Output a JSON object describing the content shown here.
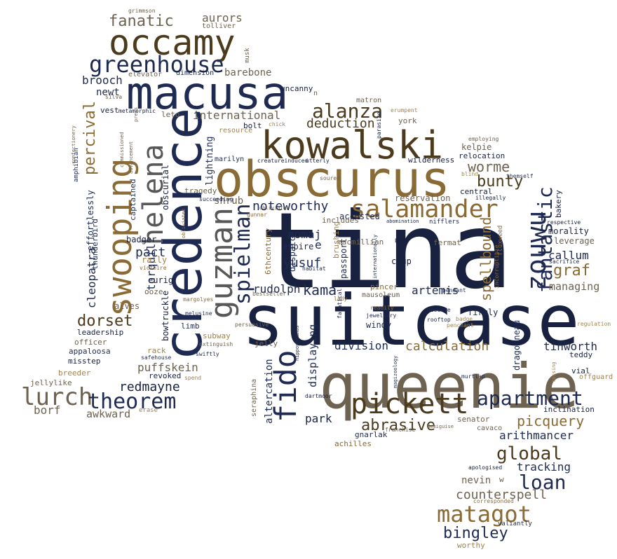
{
  "palette": {
    "navy": "#1e2a52",
    "dark_navy": "#18213f",
    "gold": "#8a6a35",
    "tan": "#a08350",
    "dark_brown": "#4b3a1c",
    "gray_brown": "#6e6250",
    "gray": "#585858"
  },
  "words": [
    {
      "text": "tina",
      "color": "dark_navy"
    },
    {
      "text": "suitcase",
      "color": "dark_navy"
    },
    {
      "text": "queenie",
      "color": "gray_brown"
    },
    {
      "text": "credence",
      "color": "navy"
    },
    {
      "text": "obscurus",
      "color": "gold"
    },
    {
      "text": "macusa",
      "color": "navy"
    },
    {
      "text": "kowalski",
      "color": "dark_brown"
    },
    {
      "text": "occamy",
      "color": "dark_brown"
    },
    {
      "text": "swooping",
      "color": "gold"
    },
    {
      "text": "guzman",
      "color": "gray"
    },
    {
      "text": "fido",
      "color": "navy"
    },
    {
      "text": "helena",
      "color": "gray"
    },
    {
      "text": "zouwu",
      "color": "navy"
    },
    {
      "text": "pickett",
      "color": "dark_brown"
    },
    {
      "text": "salamander",
      "color": "gold"
    },
    {
      "text": "fantastic",
      "color": "navy"
    },
    {
      "text": "greenhouse",
      "color": "navy"
    },
    {
      "text": "spielman",
      "color": "navy"
    },
    {
      "text": "lurch",
      "color": "gray_brown"
    },
    {
      "text": "theorem",
      "color": "navy"
    },
    {
      "text": "apartment",
      "color": "navy"
    },
    {
      "text": "matagot",
      "color": "gold"
    },
    {
      "text": "alanza",
      "color": "dark_brown"
    },
    {
      "text": "loan",
      "color": "navy"
    },
    {
      "text": "global",
      "color": "dark_brown"
    },
    {
      "text": "abrasive",
      "color": "dark_brown"
    },
    {
      "text": "fanatic",
      "color": "gray_brown"
    },
    {
      "text": "percival",
      "color": "gold"
    },
    {
      "text": "spellbound",
      "color": "gold"
    },
    {
      "text": "bunty",
      "color": "dark_brown"
    },
    {
      "text": "worme",
      "color": "gray_brown"
    },
    {
      "text": "picquery",
      "color": "gold"
    },
    {
      "text": "bingley",
      "color": "navy"
    },
    {
      "text": "dorset",
      "color": "dark_brown"
    },
    {
      "text": "graf",
      "color": "gold"
    },
    {
      "text": "noteworthy",
      "color": "navy"
    },
    {
      "text": "deduction",
      "color": "dark_brown"
    },
    {
      "text": "calculation",
      "color": "gold"
    },
    {
      "text": "international",
      "color": "gray_brown"
    },
    {
      "text": "kama",
      "color": "navy"
    },
    {
      "text": "redmayne",
      "color": "dark_navy"
    },
    {
      "text": "counterspell",
      "color": "gray_brown"
    },
    {
      "text": "tinworth",
      "color": "navy"
    },
    {
      "text": "division",
      "color": "navy"
    },
    {
      "text": "callum",
      "color": "navy"
    },
    {
      "text": "arithmancer",
      "color": "navy"
    },
    {
      "text": "managing",
      "color": "gray_brown"
    },
    {
      "text": "tracking",
      "color": "navy"
    },
    {
      "text": "yusuf",
      "color": "navy"
    },
    {
      "text": "rudolph",
      "color": "navy"
    },
    {
      "text": "artemis",
      "color": "navy"
    },
    {
      "text": "torquil",
      "color": "navy"
    },
    {
      "text": "pact",
      "color": "navy"
    },
    {
      "text": "nomaj",
      "color": "navy"
    },
    {
      "text": "puffskein",
      "color": "gray_brown"
    },
    {
      "text": "nevin",
      "color": "gray_brown"
    },
    {
      "text": "brooch",
      "color": "navy"
    },
    {
      "text": "newt",
      "color": "navy"
    },
    {
      "text": "awkward",
      "color": "gray_brown"
    },
    {
      "text": "aurors",
      "color": "gray_brown"
    },
    {
      "text": "barebone",
      "color": "gray_brown"
    },
    {
      "text": "cleopatra",
      "color": "navy"
    },
    {
      "text": "park",
      "color": "dark_navy"
    },
    {
      "text": "borf",
      "color": "gray_brown"
    },
    {
      "text": "displaying",
      "color": "navy"
    },
    {
      "text": "altercation",
      "color": "navy"
    },
    {
      "text": "lightning",
      "color": "navy"
    },
    {
      "text": "shrub",
      "color": "gray_brown"
    },
    {
      "text": "bowtruckle",
      "color": "dark_navy"
    },
    {
      "text": "effortlessly",
      "color": "navy"
    },
    {
      "text": "thunderbird",
      "color": "navy"
    },
    {
      "text": "obscurial",
      "color": "dark_navy"
    },
    {
      "text": "captained",
      "color": "navy"
    },
    {
      "text": "alves",
      "color": "gray_brown"
    },
    {
      "text": "eurig",
      "color": "dark_navy"
    },
    {
      "text": "badger",
      "color": "dark_navy"
    },
    {
      "text": "rally",
      "color": "tan"
    },
    {
      "text": "dragonneau",
      "color": "navy"
    },
    {
      "text": "firmly",
      "color": "navy"
    },
    {
      "text": "windy",
      "color": "navy"
    },
    {
      "text": "fermat",
      "color": "gray_brown"
    },
    {
      "text": "crup",
      "color": "dark_navy"
    },
    {
      "text": "passport",
      "color": "navy"
    },
    {
      "text": "brushing",
      "color": "tan"
    },
    {
      "text": "dispatch",
      "color": "navy"
    },
    {
      "text": "6thcentury",
      "color": "gold"
    },
    {
      "text": "empire",
      "color": "navy"
    },
    {
      "text": "e",
      "color": "navy"
    },
    {
      "text": "macmillian",
      "color": "gray_brown"
    },
    {
      "text": "accosted",
      "color": "navy"
    },
    {
      "text": "reservation",
      "color": "gray_brown"
    },
    {
      "text": "relocation",
      "color": "dark_navy"
    },
    {
      "text": "kelpie",
      "color": "gray_brown"
    },
    {
      "text": "central",
      "color": "dark_navy"
    },
    {
      "text": "bakery",
      "color": "dark_navy"
    },
    {
      "text": "morality",
      "color": "dark_navy"
    },
    {
      "text": "leverage",
      "color": "gray_brown"
    },
    {
      "text": "wilderness",
      "color": "dark_navy"
    },
    {
      "text": "includes",
      "color": "gray_brown"
    },
    {
      "text": "york",
      "color": "gray_brown"
    },
    {
      "text": "matron",
      "color": "gray_brown"
    },
    {
      "text": "uncanny",
      "color": "dark_navy"
    },
    {
      "text": "bolt",
      "color": "dark_navy"
    },
    {
      "text": "marilyn",
      "color": "navy"
    },
    {
      "text": "tragedy",
      "color": "gray_brown"
    },
    {
      "text": "leto",
      "color": "gray_brown"
    },
    {
      "text": "vest",
      "color": "dark_navy"
    },
    {
      "text": "leadership",
      "color": "dark_navy"
    },
    {
      "text": "officer",
      "color": "gray_brown"
    },
    {
      "text": "appaloosa",
      "color": "navy"
    },
    {
      "text": "misstep",
      "color": "dark_navy"
    },
    {
      "text": "breeder",
      "color": "tan"
    },
    {
      "text": "jellylike",
      "color": "gray_brown"
    },
    {
      "text": "rack",
      "color": "tan"
    },
    {
      "text": "revoked",
      "color": "dark_navy"
    },
    {
      "text": "subway",
      "color": "tan"
    },
    {
      "text": "limb",
      "color": "navy"
    },
    {
      "text": "ooze",
      "color": "gray_brown"
    },
    {
      "text": "jelly",
      "color": "gray_brown"
    },
    {
      "text": "senator",
      "color": "gray_brown"
    },
    {
      "text": "gnarlak",
      "color": "navy"
    },
    {
      "text": "achilles",
      "color": "gold"
    },
    {
      "text": "pincer",
      "color": "gold"
    },
    {
      "text": "mausoleum",
      "color": "gray_brown"
    },
    {
      "text": "cavaco",
      "color": "gray_brown"
    },
    {
      "text": "inclination",
      "color": "dark_navy"
    },
    {
      "text": "vial",
      "color": "dark_navy"
    },
    {
      "text": "teddy",
      "color": "dark_navy"
    },
    {
      "text": "offguard",
      "color": "tan"
    },
    {
      "text": "seraphina",
      "color": "gray_brown"
    },
    {
      "text": "worthy",
      "color": "tan"
    },
    {
      "text": "valiantly",
      "color": "navy"
    },
    {
      "text": "w",
      "color": "gray_brown"
    },
    {
      "text": "dimension",
      "color": "dark_navy"
    },
    {
      "text": "elevator",
      "color": "gray_brown"
    },
    {
      "text": "tolliver",
      "color": "gray_brown"
    },
    {
      "text": "grimmson",
      "color": "gray_brown"
    },
    {
      "text": "musk",
      "color": "gray_brown"
    },
    {
      "text": "resource",
      "color": "tan"
    },
    {
      "text": "chick",
      "color": "tan"
    },
    {
      "text": "erumpent",
      "color": "tan"
    },
    {
      "text": "parasite",
      "color": "dark_navy"
    },
    {
      "text": "employing",
      "color": "gray_brown"
    },
    {
      "text": "blind",
      "color": "tan"
    },
    {
      "text": "themself",
      "color": "navy"
    },
    {
      "text": "illegally",
      "color": "dark_navy"
    },
    {
      "text": "respective",
      "color": "dark_navy"
    },
    {
      "text": "sacrifice",
      "color": "navy"
    },
    {
      "text": "nifflers",
      "color": "navy"
    },
    {
      "text": "abomination",
      "color": "dark_navy"
    },
    {
      "text": "pope",
      "color": "dark_navy"
    },
    {
      "text": "fluxweed",
      "color": "gold"
    },
    {
      "text": "incorruptible",
      "color": "gold"
    },
    {
      "text": "pendant",
      "color": "navy"
    },
    {
      "text": "regulation",
      "color": "tan"
    },
    {
      "text": "deserve",
      "color": "navy"
    },
    {
      "text": "rooftop",
      "color": "dark_navy"
    },
    {
      "text": "penchant",
      "color": "tan"
    },
    {
      "text": "badge",
      "color": "tan"
    },
    {
      "text": "readily",
      "color": "gold"
    },
    {
      "text": "jewellery",
      "color": "navy"
    },
    {
      "text": "lady",
      "color": "gold"
    },
    {
      "text": "bestseller",
      "color": "gray_brown"
    },
    {
      "text": "habitat",
      "color": "navy"
    },
    {
      "text": "internationally",
      "color": "dark_navy"
    },
    {
      "text": "fanatical",
      "color": "dark_navy"
    },
    {
      "text": "hippopotamus",
      "color": "navy"
    },
    {
      "text": "soured",
      "color": "gray_brown"
    },
    {
      "text": "creatureinduced",
      "color": "dark_navy"
    },
    {
      "text": "utterly",
      "color": "dark_navy"
    },
    {
      "text": "gunnar",
      "color": "gold"
    },
    {
      "text": "obliviator",
      "color": "gray_brown"
    },
    {
      "text": "obliviated",
      "color": "gold"
    },
    {
      "text": "succeeding",
      "color": "dark_navy"
    },
    {
      "text": "melusine",
      "color": "navy"
    },
    {
      "text": "persuasive",
      "color": "gray_brown"
    },
    {
      "text": "extinguish",
      "color": "gray_brown"
    },
    {
      "text": "swiftly",
      "color": "navy"
    },
    {
      "text": "safehouse",
      "color": "navy"
    },
    {
      "text": "spend",
      "color": "tan"
    },
    {
      "text": "erase",
      "color": "tan"
    },
    {
      "text": "margolyes",
      "color": "gold"
    },
    {
      "text": "victoire",
      "color": "gold"
    },
    {
      "text": "dartmoor",
      "color": "dark_navy"
    },
    {
      "text": "magizoology",
      "color": "navy"
    },
    {
      "text": "franchise",
      "color": "gray_brown"
    },
    {
      "text": "demiguise",
      "color": "gray_brown"
    },
    {
      "text": "murtlap",
      "color": "navy"
    },
    {
      "text": "tossing",
      "color": "tan"
    },
    {
      "text": "apologised",
      "color": "dark_navy"
    },
    {
      "text": "corresponded",
      "color": "gold"
    },
    {
      "text": "amphibian",
      "color": "navy"
    },
    {
      "text": "confectionery",
      "color": "gray_brown"
    },
    {
      "text": "commissioned",
      "color": "gray_brown"
    },
    {
      "text": "advancement",
      "color": "gray_brown"
    },
    {
      "text": "press",
      "color": "gray_brown"
    },
    {
      "text": "silva",
      "color": "gray_brown"
    },
    {
      "text": "metamorphic",
      "color": "dark_navy"
    },
    {
      "text": "n",
      "color": "gray_brown"
    }
  ]
}
